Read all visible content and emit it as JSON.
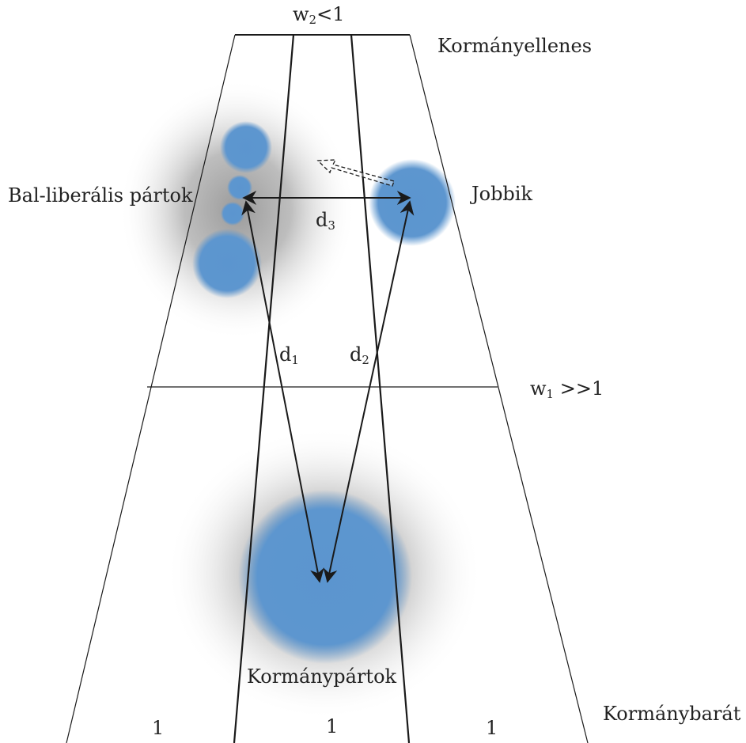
{
  "labels": {
    "top_weight_base": "w",
    "top_weight_sub": "2",
    "top_weight_rest": "<1",
    "anti_government": "Kormányellenes",
    "left_liberal": "Bal-liberális pártok",
    "jobbik": "Jobbik",
    "d3_base": "d",
    "d3_sub": "3",
    "d1_base": "d",
    "d1_sub": "1",
    "d2_base": "d",
    "d2_sub": "2",
    "mid_weight_base": "w",
    "mid_weight_sub": "1",
    "mid_weight_rest": " >>1",
    "government_parties": "Kormánypártok",
    "pro_government": "Kormánybarát",
    "weight_left": "1",
    "weight_center": "1",
    "weight_right": "1"
  },
  "colors": {
    "party_blob": "#5b95cf",
    "shadow": "#8f8f8f",
    "line": "#1a1a1a"
  }
}
